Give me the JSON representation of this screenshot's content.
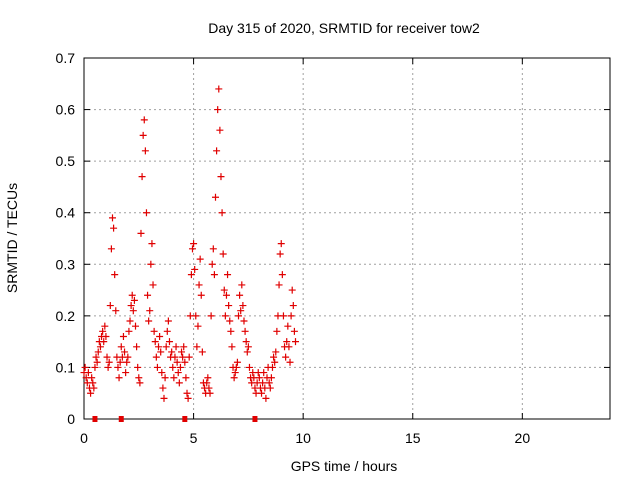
{
  "chart_data": {
    "type": "scatter",
    "title": "Day 315 of 2020, SRMTID for receiver tow2",
    "xlabel": "GPS time / hours",
    "ylabel": "SRMTID / TECUs",
    "xlim": [
      0,
      24
    ],
    "ylim": [
      0,
      0.7
    ],
    "xticks": [
      0,
      5,
      10,
      15,
      20
    ],
    "yticks": [
      0,
      0.1,
      0.2,
      0.3,
      0.4,
      0.5,
      0.6,
      0.7
    ],
    "grid": true,
    "marker_color": "#e00000",
    "series": [
      {
        "name": "SRMTID",
        "points": [
          [
            0.0,
            0.09
          ],
          [
            0.05,
            0.1
          ],
          [
            0.1,
            0.08
          ],
          [
            0.15,
            0.07
          ],
          [
            0.2,
            0.09
          ],
          [
            0.25,
            0.06
          ],
          [
            0.3,
            0.05
          ],
          [
            0.35,
            0.08
          ],
          [
            0.4,
            0.07
          ],
          [
            0.45,
            0.06
          ],
          [
            0.5,
            0.1
          ],
          [
            0.55,
            0.12
          ],
          [
            0.6,
            0.11
          ],
          [
            0.65,
            0.13
          ],
          [
            0.7,
            0.15
          ],
          [
            0.75,
            0.14
          ],
          [
            0.8,
            0.16
          ],
          [
            0.85,
            0.17
          ],
          [
            0.9,
            0.15
          ],
          [
            0.95,
            0.18
          ],
          [
            1.0,
            0.16
          ],
          [
            1.05,
            0.12
          ],
          [
            1.1,
            0.1
          ],
          [
            1.15,
            0.11
          ],
          [
            1.2,
            0.22
          ],
          [
            1.25,
            0.33
          ],
          [
            1.3,
            0.39
          ],
          [
            1.35,
            0.37
          ],
          [
            1.4,
            0.28
          ],
          [
            1.45,
            0.21
          ],
          [
            1.5,
            0.12
          ],
          [
            1.55,
            0.1
          ],
          [
            1.6,
            0.08
          ],
          [
            1.65,
            0.11
          ],
          [
            1.7,
            0.14
          ],
          [
            1.75,
            0.12
          ],
          [
            1.8,
            0.16
          ],
          [
            1.85,
            0.13
          ],
          [
            1.9,
            0.09
          ],
          [
            1.95,
            0.11
          ],
          [
            2.0,
            0.12
          ],
          [
            2.05,
            0.17
          ],
          [
            2.1,
            0.19
          ],
          [
            2.15,
            0.22
          ],
          [
            2.2,
            0.24
          ],
          [
            2.25,
            0.21
          ],
          [
            2.3,
            0.23
          ],
          [
            2.35,
            0.18
          ],
          [
            2.4,
            0.14
          ],
          [
            2.45,
            0.1
          ],
          [
            2.5,
            0.08
          ],
          [
            2.55,
            0.07
          ],
          [
            2.6,
            0.36
          ],
          [
            2.65,
            0.47
          ],
          [
            2.7,
            0.55
          ],
          [
            2.75,
            0.58
          ],
          [
            2.8,
            0.52
          ],
          [
            2.85,
            0.4
          ],
          [
            2.9,
            0.24
          ],
          [
            2.95,
            0.19
          ],
          [
            3.0,
            0.21
          ],
          [
            3.05,
            0.3
          ],
          [
            3.1,
            0.34
          ],
          [
            3.15,
            0.26
          ],
          [
            3.2,
            0.17
          ],
          [
            3.25,
            0.15
          ],
          [
            3.3,
            0.12
          ],
          [
            3.35,
            0.1
          ],
          [
            3.4,
            0.14
          ],
          [
            3.45,
            0.16
          ],
          [
            3.5,
            0.13
          ],
          [
            3.55,
            0.09
          ],
          [
            3.6,
            0.06
          ],
          [
            3.65,
            0.04
          ],
          [
            3.7,
            0.08
          ],
          [
            3.75,
            0.14
          ],
          [
            3.8,
            0.17
          ],
          [
            3.85,
            0.19
          ],
          [
            3.9,
            0.15
          ],
          [
            3.95,
            0.12
          ],
          [
            4.0,
            0.13
          ],
          [
            4.05,
            0.1
          ],
          [
            4.1,
            0.08
          ],
          [
            4.15,
            0.12
          ],
          [
            4.2,
            0.14
          ],
          [
            4.25,
            0.11
          ],
          [
            4.3,
            0.09
          ],
          [
            4.35,
            0.07
          ],
          [
            4.4,
            0.1
          ],
          [
            4.45,
            0.13
          ],
          [
            4.5,
            0.12
          ],
          [
            4.55,
            0.14
          ],
          [
            4.6,
            0.11
          ],
          [
            4.65,
            0.08
          ],
          [
            4.7,
            0.05
          ],
          [
            4.75,
            0.04
          ],
          [
            4.8,
            0.12
          ],
          [
            4.85,
            0.2
          ],
          [
            4.9,
            0.28
          ],
          [
            4.95,
            0.33
          ],
          [
            5.0,
            0.34
          ],
          [
            5.05,
            0.29
          ],
          [
            5.1,
            0.2
          ],
          [
            5.15,
            0.14
          ],
          [
            5.2,
            0.18
          ],
          [
            5.25,
            0.26
          ],
          [
            5.3,
            0.31
          ],
          [
            5.35,
            0.24
          ],
          [
            5.4,
            0.13
          ],
          [
            5.45,
            0.07
          ],
          [
            5.5,
            0.06
          ],
          [
            5.55,
            0.05
          ],
          [
            5.6,
            0.07
          ],
          [
            5.65,
            0.08
          ],
          [
            5.7,
            0.06
          ],
          [
            5.75,
            0.05
          ],
          [
            5.8,
            0.2
          ],
          [
            5.85,
            0.3
          ],
          [
            5.9,
            0.33
          ],
          [
            5.95,
            0.28
          ],
          [
            6.0,
            0.43
          ],
          [
            6.05,
            0.52
          ],
          [
            6.1,
            0.6
          ],
          [
            6.15,
            0.64
          ],
          [
            6.2,
            0.56
          ],
          [
            6.25,
            0.47
          ],
          [
            6.3,
            0.4
          ],
          [
            6.35,
            0.32
          ],
          [
            6.4,
            0.25
          ],
          [
            6.45,
            0.2
          ],
          [
            6.5,
            0.24
          ],
          [
            6.55,
            0.28
          ],
          [
            6.6,
            0.22
          ],
          [
            6.65,
            0.19
          ],
          [
            6.7,
            0.17
          ],
          [
            6.75,
            0.14
          ],
          [
            6.8,
            0.1
          ],
          [
            6.85,
            0.08
          ],
          [
            6.9,
            0.09
          ],
          [
            6.95,
            0.1
          ],
          [
            7.0,
            0.11
          ],
          [
            7.05,
            0.2
          ],
          [
            7.1,
            0.24
          ],
          [
            7.15,
            0.21
          ],
          [
            7.2,
            0.26
          ],
          [
            7.25,
            0.22
          ],
          [
            7.3,
            0.19
          ],
          [
            7.35,
            0.17
          ],
          [
            7.4,
            0.15
          ],
          [
            7.45,
            0.13
          ],
          [
            7.5,
            0.14
          ],
          [
            7.55,
            0.1
          ],
          [
            7.6,
            0.08
          ],
          [
            7.65,
            0.07
          ],
          [
            7.7,
            0.09
          ],
          [
            7.75,
            0.08
          ],
          [
            7.8,
            0.06
          ],
          [
            7.85,
            0.05
          ],
          [
            7.9,
            0.07
          ],
          [
            7.95,
            0.09
          ],
          [
            8.0,
            0.08
          ],
          [
            8.05,
            0.06
          ],
          [
            8.1,
            0.05
          ],
          [
            8.15,
            0.07
          ],
          [
            8.2,
            0.09
          ],
          [
            8.25,
            0.06
          ],
          [
            8.3,
            0.04
          ],
          [
            8.35,
            0.08
          ],
          [
            8.4,
            0.1
          ],
          [
            8.45,
            0.07
          ],
          [
            8.5,
            0.06
          ],
          [
            8.55,
            0.08
          ],
          [
            8.6,
            0.1
          ],
          [
            8.65,
            0.12
          ],
          [
            8.7,
            0.11
          ],
          [
            8.75,
            0.13
          ],
          [
            8.8,
            0.17
          ],
          [
            8.85,
            0.2
          ],
          [
            8.9,
            0.26
          ],
          [
            8.95,
            0.32
          ],
          [
            9.0,
            0.34
          ],
          [
            9.05,
            0.28
          ],
          [
            9.1,
            0.2
          ],
          [
            9.15,
            0.14
          ],
          [
            9.2,
            0.12
          ],
          [
            9.25,
            0.15
          ],
          [
            9.3,
            0.18
          ],
          [
            9.35,
            0.14
          ],
          [
            9.4,
            0.11
          ],
          [
            9.45,
            0.2
          ],
          [
            9.5,
            0.25
          ],
          [
            9.55,
            0.22
          ],
          [
            9.6,
            0.17
          ],
          [
            9.65,
            0.15
          ]
        ]
      }
    ],
    "gap_markers_x": [
      0.5,
      1.7,
      4.6,
      7.8
    ]
  }
}
